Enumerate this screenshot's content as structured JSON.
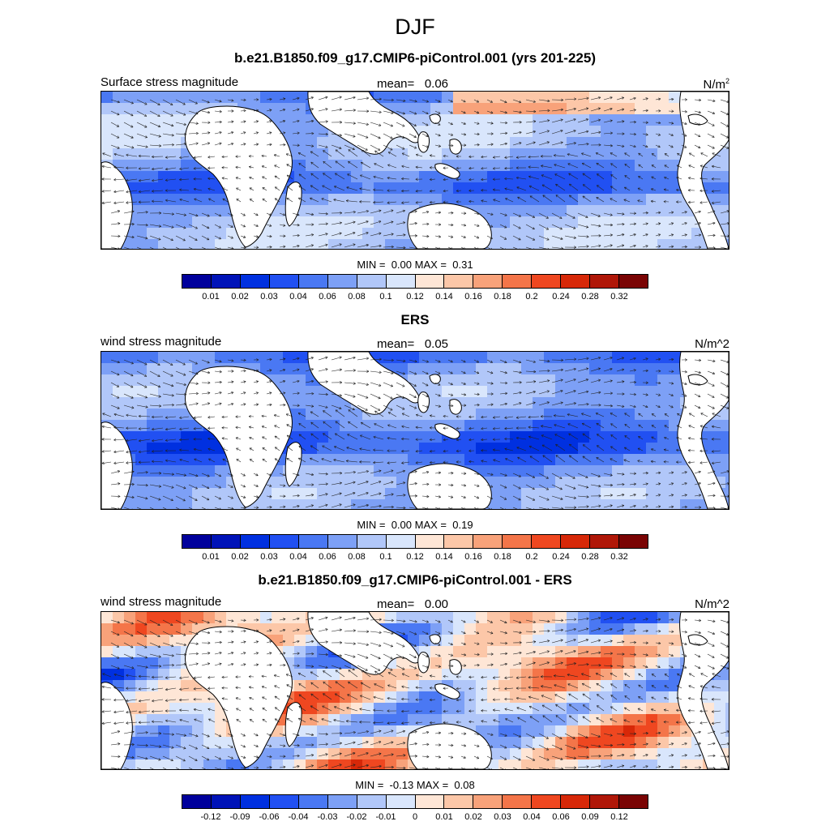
{
  "figure": {
    "season": "DJF"
  },
  "palette_seq": [
    "#00009c",
    "#0013b8",
    "#0030e0",
    "#2150f2",
    "#4a78f3",
    "#7da0f6",
    "#b1c7f9",
    "#d9e6fc",
    "#fee6d6",
    "#fcc7a8",
    "#f8a27a",
    "#f47549",
    "#ef4720",
    "#d72808",
    "#b01708",
    "#7a0404"
  ],
  "land_color": "#ffffff",
  "panels": [
    {
      "id": "model",
      "subtitle": "b.e21.B1850.f09_g17.CMIP6-piControl.001 (yrs 201-225)",
      "left_label": "Surface stress magnitude",
      "mean_label": "mean=",
      "mean_value": "0.06",
      "units": "N/m",
      "units_sup": "2",
      "min_label": "MIN =",
      "min_value": "0.00",
      "max_label": "MAX =",
      "max_value": "0.31",
      "colorbar_ticks": [
        "0.01",
        "0.02",
        "0.03",
        "0.04",
        "0.06",
        "0.08",
        "0.1",
        "0.12",
        "0.14",
        "0.16",
        "0.18",
        "0.2",
        "0.24",
        "0.28",
        "0.32"
      ],
      "field": "model"
    },
    {
      "id": "obs",
      "subtitle": "ERS",
      "left_label": "wind stress magnitude",
      "mean_label": "mean=",
      "mean_value": "0.05",
      "units": "N/m^2",
      "units_sup": "",
      "min_label": "MIN =",
      "min_value": "0.00",
      "max_label": "MAX =",
      "max_value": "0.19",
      "colorbar_ticks": [
        "0.01",
        "0.02",
        "0.03",
        "0.04",
        "0.06",
        "0.08",
        "0.1",
        "0.12",
        "0.14",
        "0.16",
        "0.18",
        "0.2",
        "0.24",
        "0.28",
        "0.32"
      ],
      "field": "obs"
    },
    {
      "id": "diff",
      "subtitle": "b.e21.B1850.f09_g17.CMIP6-piControl.001 - ERS",
      "left_label": "wind stress magnitude",
      "mean_label": "mean=",
      "mean_value": "0.00",
      "units": "N/m^2",
      "units_sup": "",
      "min_label": "MIN =",
      "min_value": "-0.13",
      "max_label": "MAX =",
      "max_value": "0.08",
      "colorbar_ticks": [
        "-0.12",
        "-0.09",
        "-0.06",
        "-0.04",
        "-0.03",
        "-0.02",
        "-0.01",
        "0",
        "0.01",
        "0.02",
        "0.03",
        "0.04",
        "0.06",
        "0.09",
        "0.12"
      ],
      "field": "diff"
    }
  ]
}
